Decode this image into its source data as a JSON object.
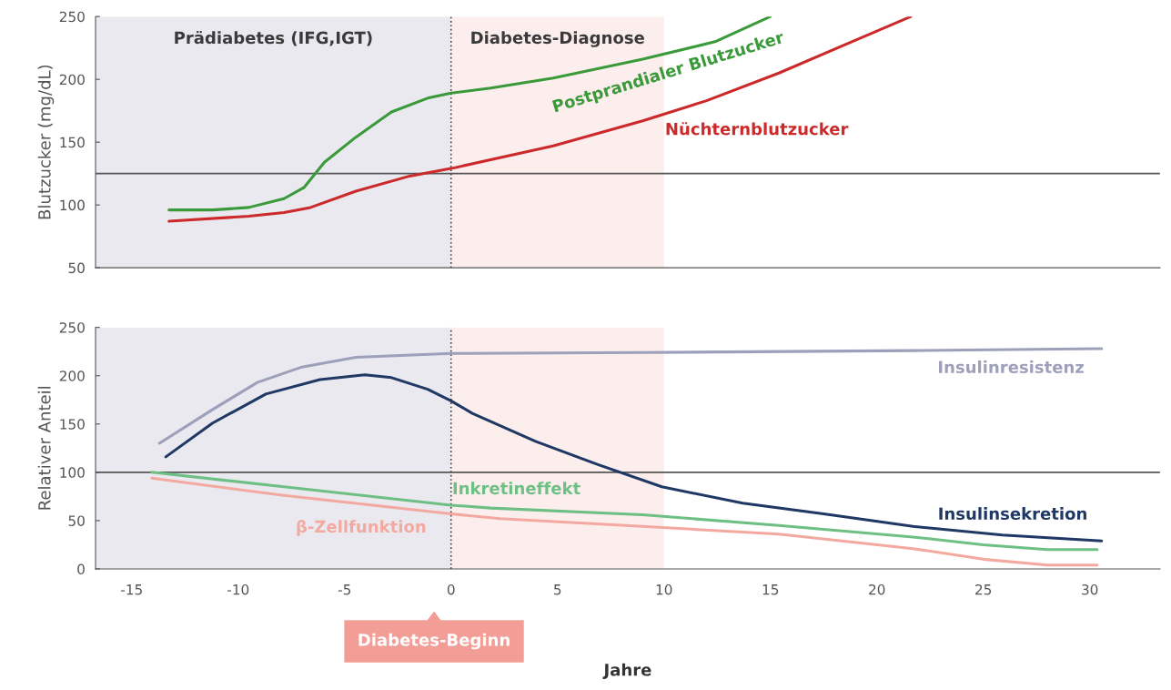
{
  "chart_data": [
    {
      "type": "line",
      "ylabel": "Blutzucker (mg/dL)",
      "xlim": [
        -16.7,
        33.3
      ],
      "ylim": [
        50,
        250
      ],
      "yticks": [
        50,
        100,
        150,
        200,
        250
      ],
      "tick_labels": "y",
      "grid": false,
      "legend": false,
      "series": [
        {
          "name": "Postprandialer Blutzucker",
          "color": "#3a9a3a",
          "x": [
            -13.25,
            -11.2,
            -9.5,
            -7.85,
            -6.9,
            -5.95,
            -4.47,
            -2.8,
            -1.1,
            0,
            1.86,
            4.8,
            9.0,
            12.4,
            15.0
          ],
          "values": [
            96,
            96,
            98,
            105,
            114,
            134,
            154,
            174,
            185,
            189,
            193,
            201,
            216,
            230,
            250
          ]
        },
        {
          "name": "Nüchternblutzucker",
          "color": "#cc2a2a",
          "x": [
            -13.25,
            -9.5,
            -7.85,
            -6.6,
            -4.47,
            -1.94,
            0,
            4.8,
            9.0,
            12.0,
            15.4,
            18.7,
            21.6
          ],
          "values": [
            87,
            91,
            94,
            98,
            111,
            123,
            129,
            147,
            167,
            183,
            205,
            229,
            250
          ]
        }
      ],
      "bands": [
        {
          "axis": "x",
          "from": -16.7,
          "to": 0,
          "label": "Prädiabetes (IFG,IGT)",
          "color": "#eae9f0"
        },
        {
          "axis": "x",
          "from": 0,
          "to": 10,
          "label": "Diabetes-Diagnose",
          "color": "#fdeeee"
        }
      ],
      "ref_lines": [
        {
          "axis": "y",
          "value": 125,
          "color": "#555555",
          "line_style": "solid"
        },
        {
          "axis": "x",
          "value": 0,
          "color": "#444444",
          "line_style": "dotted"
        }
      ]
    },
    {
      "type": "line",
      "xlabel": "Jahre",
      "ylabel": "Relativer Anteil",
      "xlim": [
        -16.7,
        33.3
      ],
      "ylim": [
        0,
        250
      ],
      "xticks": [
        -15,
        -10,
        -5,
        0,
        5,
        10,
        15,
        20,
        25,
        30
      ],
      "yticks": [
        0,
        50,
        100,
        150,
        200,
        250
      ],
      "grid": false,
      "legend": false,
      "series": [
        {
          "name": "Insulinresistenz",
          "color": "#9da0ba",
          "x": [
            -13.7,
            -11.2,
            -9.1,
            -7.0,
            -4.47,
            0,
            9,
            21.7,
            30.56
          ],
          "values": [
            130,
            165,
            193,
            209,
            219,
            223,
            224,
            226,
            228
          ]
        },
        {
          "name": "Insulinsekretion",
          "color": "#1f3864",
          "x": [
            -13.4,
            -11.2,
            -8.7,
            -6.16,
            -4.05,
            -2.8,
            -1.1,
            0,
            1.0,
            3.97,
            6.9,
            9.9,
            13.7,
            17.5,
            21.7,
            25.9,
            30.56
          ],
          "values": [
            116,
            151,
            181,
            196,
            201,
            198,
            186,
            174,
            161,
            132,
            108,
            85,
            68,
            57,
            44,
            35,
            29
          ]
        },
        {
          "name": "Inkretineffekt",
          "color": "#6dbf84",
          "x": [
            -14.06,
            -7.85,
            0,
            1.86,
            9,
            15.4,
            21.7,
            25,
            28,
            30.35
          ],
          "values": [
            100,
            85,
            66,
            63,
            56,
            45,
            33,
            25,
            20,
            20
          ]
        },
        {
          "name": "β-Zellfunktion",
          "color": "#f4a9a0",
          "x": [
            -14.06,
            -7.85,
            0,
            2.3,
            9,
            15.4,
            21.7,
            25,
            28,
            30.35
          ],
          "values": [
            94,
            76,
            57,
            52,
            44,
            36,
            21,
            10,
            4,
            4
          ]
        }
      ],
      "bands": [
        {
          "axis": "x",
          "from": -16.7,
          "to": 0,
          "label": null,
          "color": "#eae9f0"
        },
        {
          "axis": "x",
          "from": 0,
          "to": 10,
          "label": null,
          "color": "#fdeeee"
        }
      ],
      "ref_lines": [
        {
          "axis": "y",
          "value": 100,
          "color": "#555555",
          "line_style": "solid"
        },
        {
          "axis": "x",
          "value": 0,
          "color": "#444444",
          "line_style": "dotted"
        }
      ],
      "annotations": [
        "Diabetes-Beginn"
      ]
    }
  ]
}
